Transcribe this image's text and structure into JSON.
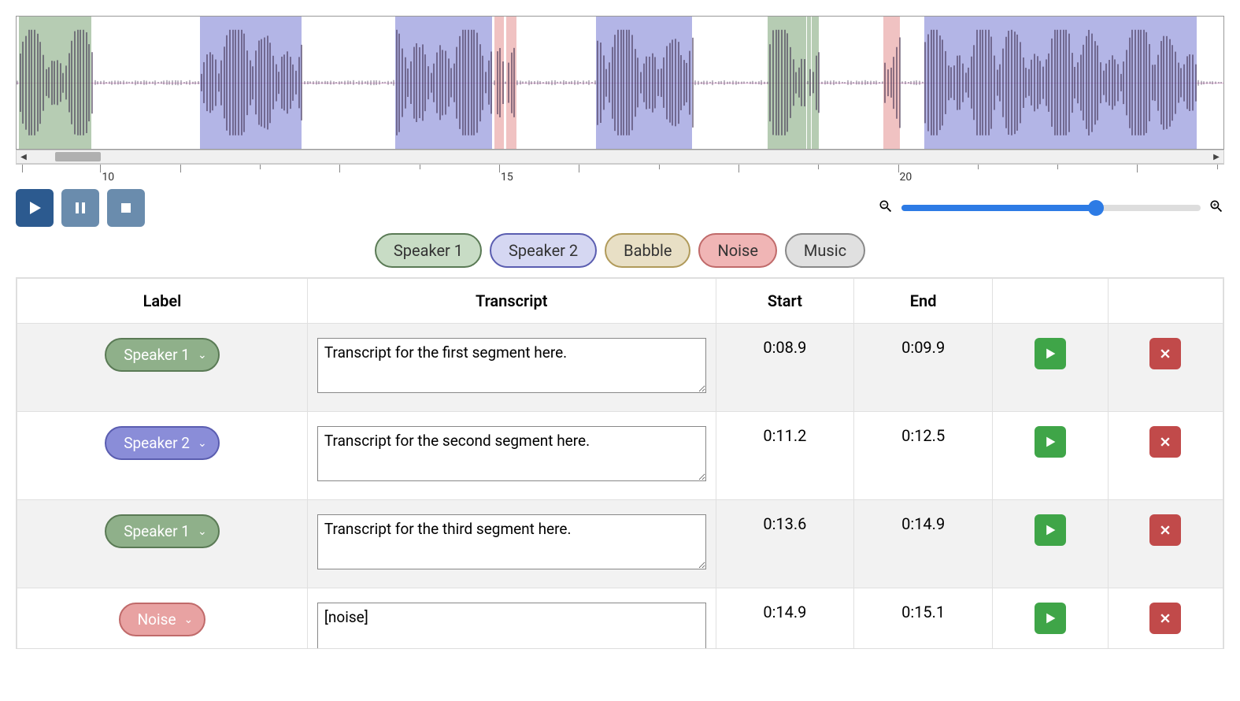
{
  "palette": {
    "speaker1": "#8fb08a",
    "speaker1_border": "#5a7a55",
    "speaker2": "#8a8dd8",
    "speaker2_border": "#5a5db0",
    "babble": "#d8c28a",
    "babble_border": "#b09a5a",
    "noise": "#e8a2a2",
    "noise_border": "#c06a6a",
    "music": "#cccccc",
    "music_border": "#888888",
    "play_btn": "#2c5a8f",
    "pause_stop_btn": "#6a8cad",
    "row_play": "#3fa548",
    "row_delete": "#c14a4a",
    "slider_fill": "#2d7be5"
  },
  "waveform": {
    "segments": [
      {
        "start_pct": 0.2,
        "width_pct": 6.0,
        "color_key": "speaker1"
      },
      {
        "start_pct": 15.2,
        "width_pct": 8.4,
        "color_key": "speaker2"
      },
      {
        "start_pct": 31.4,
        "width_pct": 8.0,
        "color_key": "speaker2"
      },
      {
        "start_pct": 39.6,
        "width_pct": 0.8,
        "color_key": "noise"
      },
      {
        "start_pct": 40.6,
        "width_pct": 0.8,
        "color_key": "noise"
      },
      {
        "start_pct": 48.0,
        "width_pct": 8.0,
        "color_key": "speaker2"
      },
      {
        "start_pct": 62.2,
        "width_pct": 3.2,
        "color_key": "speaker1"
      },
      {
        "start_pct": 65.5,
        "width_pct": 0.3,
        "color_key": "speaker1"
      },
      {
        "start_pct": 65.9,
        "width_pct": 0.6,
        "color_key": "speaker1"
      },
      {
        "start_pct": 71.8,
        "width_pct": 1.4,
        "color_key": "noise"
      },
      {
        "start_pct": 75.2,
        "width_pct": 22.6,
        "color_key": "speaker2"
      }
    ]
  },
  "hscroll": {
    "thumb_left_pct": 3.2,
    "thumb_width_pct": 3.8
  },
  "ruler": {
    "ticks": [
      {
        "pos_pct": 0.5,
        "small": false
      },
      {
        "pos_pct": 7.0,
        "small": false,
        "label": "10"
      },
      {
        "pos_pct": 13.6,
        "small": false
      },
      {
        "pos_pct": 20.2,
        "small": true
      },
      {
        "pos_pct": 26.8,
        "small": false
      },
      {
        "pos_pct": 33.4,
        "small": true
      },
      {
        "pos_pct": 40.0,
        "small": false,
        "label": "15"
      },
      {
        "pos_pct": 46.6,
        "small": false
      },
      {
        "pos_pct": 53.2,
        "small": true
      },
      {
        "pos_pct": 59.8,
        "small": false
      },
      {
        "pos_pct": 66.4,
        "small": true
      },
      {
        "pos_pct": 73.0,
        "small": false,
        "label": "20"
      },
      {
        "pos_pct": 79.6,
        "small": true
      },
      {
        "pos_pct": 86.2,
        "small": true
      },
      {
        "pos_pct": 92.8,
        "small": false
      },
      {
        "pos_pct": 99.4,
        "small": true
      }
    ]
  },
  "zoom": {
    "fill_pct": 65,
    "thumb_pct": 65
  },
  "labels": [
    {
      "name": "Speaker 1",
      "bg": "#c8dcc5",
      "border": "#5a7a55"
    },
    {
      "name": "Speaker 2",
      "bg": "#d5d7f2",
      "border": "#5a5db0"
    },
    {
      "name": "Babble",
      "bg": "#e8dfc5",
      "border": "#b09a5a"
    },
    {
      "name": "Noise",
      "bg": "#f0b5b5",
      "border": "#c06a6a"
    },
    {
      "name": "Music",
      "bg": "#e0e0e0",
      "border": "#888888"
    }
  ],
  "table": {
    "headers": {
      "label": "Label",
      "transcript": "Transcript",
      "start": "Start",
      "end": "End"
    },
    "rows": [
      {
        "label": "Speaker 1",
        "label_color_key": "speaker1",
        "transcript": "Transcript for the first segment here.",
        "start": "0:08.9",
        "end": "0:09.9"
      },
      {
        "label": "Speaker 2",
        "label_color_key": "speaker2",
        "transcript": "Transcript for the second segment here.",
        "start": "0:11.2",
        "end": "0:12.5"
      },
      {
        "label": "Speaker 1",
        "label_color_key": "speaker1",
        "transcript": "Transcript for the third segment here.",
        "start": "0:13.6",
        "end": "0:14.9"
      },
      {
        "label": "Noise",
        "label_color_key": "noise",
        "transcript": "[noise]",
        "start": "0:14.9",
        "end": "0:15.1"
      }
    ]
  }
}
